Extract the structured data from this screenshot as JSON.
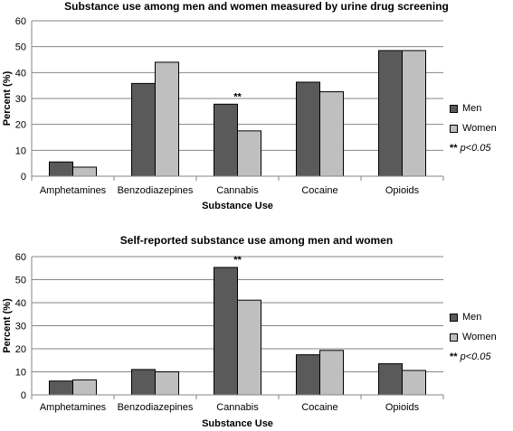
{
  "chart_data": [
    {
      "type": "bar",
      "title": "Substance use among men and women measured by urine drug screening",
      "xlabel": "Substance Use",
      "ylabel": "Percent (%)",
      "categories": [
        "Amphetamines",
        "Benzodiazepines",
        "Cannabis",
        "Cocaine",
        "Opioids"
      ],
      "series": [
        {
          "name": "Men",
          "color": "#5a5a5a",
          "values": [
            5.5,
            35.8,
            27.8,
            36.3,
            48.5
          ]
        },
        {
          "name": "Women",
          "color": "#bfbfbf",
          "values": [
            3.5,
            44.0,
            17.5,
            32.6,
            48.5
          ]
        }
      ],
      "ylim": [
        0,
        60
      ],
      "yticks": [
        0,
        10,
        20,
        30,
        40,
        50,
        60
      ],
      "grid": true,
      "legend": "right",
      "annotations": [
        {
          "category": "Cannabis",
          "text": "**"
        }
      ],
      "legend_note": {
        "stars": "**",
        "text": "p<0.05"
      }
    },
    {
      "type": "bar",
      "title": "Self-reported substance use among men and women",
      "xlabel": "Substance Use",
      "ylabel": "Percent (%)",
      "categories": [
        "Amphetamines",
        "Benzodiazepines",
        "Cannabis",
        "Cocaine",
        "Opioids"
      ],
      "series": [
        {
          "name": "Men",
          "color": "#5a5a5a",
          "values": [
            6.0,
            11.0,
            55.3,
            17.4,
            13.5
          ]
        },
        {
          "name": "Women",
          "color": "#bfbfbf",
          "values": [
            6.5,
            10.0,
            41.1,
            19.3,
            10.6
          ]
        }
      ],
      "ylim": [
        0,
        60
      ],
      "yticks": [
        0,
        10,
        20,
        30,
        40,
        50,
        60
      ],
      "grid": true,
      "legend": "right",
      "annotations": [
        {
          "category": "Cannabis",
          "text": "**"
        }
      ],
      "legend_note": {
        "stars": "**",
        "text": "p<0.05"
      }
    }
  ]
}
